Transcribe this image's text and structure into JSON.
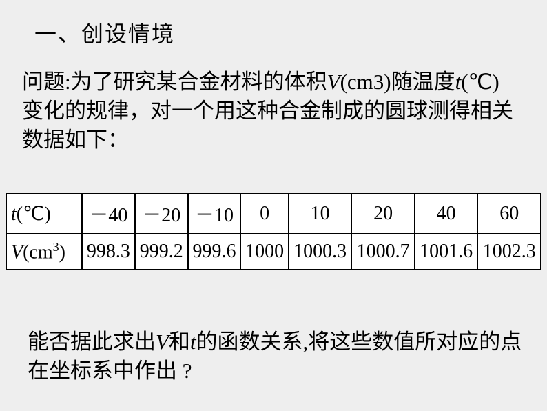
{
  "heading": "一、创设情境",
  "para1_prefix": "问题:为了研究某合金材料的体积",
  "para1_var1": "V",
  "para1_unit1": "(cm3)",
  "para1_mid1": "随温度",
  "para1_var2": "t",
  "para1_unit2": "(℃)",
  "para1_suffix": "变化的规律，对一个用这种合金制成的圆球测得相关数据如下：",
  "para2_prefix": "能否据此求出",
  "para2_var1": "V",
  "para2_mid1": "和",
  "para2_var2": "t",
  "para2_suffix": "的函数关系,将这些数值所对应的点在坐标系中作出 ?",
  "table": {
    "row1_header_var": "t",
    "row1_header_unit": "(℃)",
    "row2_header_var": "V",
    "row2_header_unit_prefix": "(cm",
    "row2_header_unit_sup": "3",
    "row2_header_unit_suffix": ")",
    "r1c1": "－40",
    "r1c2": "－20",
    "r1c3": "－10",
    "r1c4": "0",
    "r1c5": "10",
    "r1c6": "20",
    "r1c7": "40",
    "r1c8": "60",
    "r2c1": "998.3",
    "r2c2": "999.2",
    "r2c3": "999.6",
    "r2c4": "1000",
    "r2c5": "1000.3",
    "r2c6": "1000.7",
    "r2c7": "1001.6",
    "r2c8": "1002.3"
  }
}
